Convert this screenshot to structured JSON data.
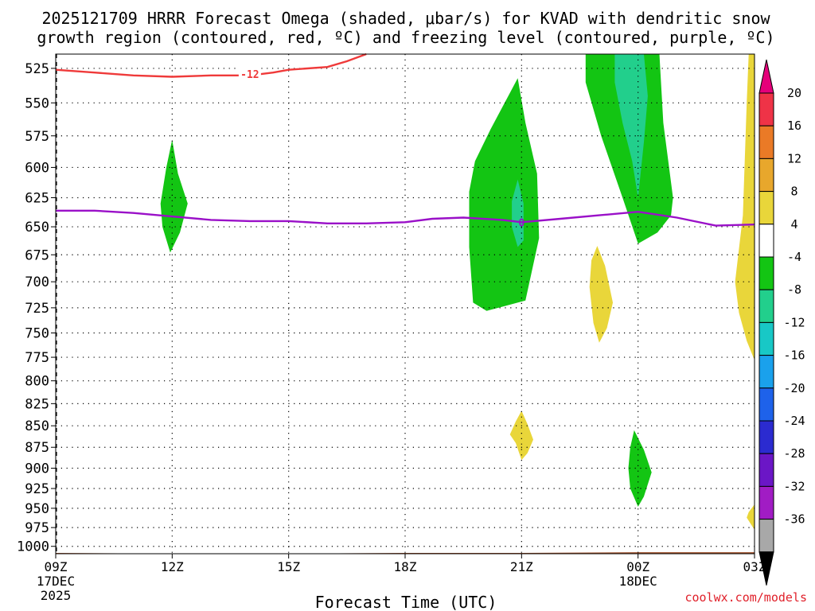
{
  "chart_data": {
    "type": "time-height contour",
    "title_line1": "2025121709 HRRR Forecast Omega (shaded, μbar/s) for KVAD with dendritic snow",
    "title_line2": "growth region (contoured, red, ºC) and freezing level (contoured, purple, ºC)",
    "xlabel": "Forecast Time (UTC)",
    "credit": "coolwx.com/models",
    "x_range_hours": [
      0,
      18
    ],
    "y_range_hpa": [
      1010,
      515
    ],
    "y_ticks": [
      "525",
      "550",
      "575",
      "600",
      "625",
      "650",
      "675",
      "700",
      "725",
      "750",
      "775",
      "800",
      "825",
      "850",
      "875",
      "900",
      "925",
      "950",
      "975",
      "1000"
    ],
    "x_ticks": [
      {
        "h": 0,
        "label": "09Z",
        "sub1": "17DEC",
        "sub2": "2025"
      },
      {
        "h": 3,
        "label": "12Z",
        "sub1": "",
        "sub2": ""
      },
      {
        "h": 6,
        "label": "15Z",
        "sub1": "",
        "sub2": ""
      },
      {
        "h": 9,
        "label": "18Z",
        "sub1": "",
        "sub2": ""
      },
      {
        "h": 12,
        "label": "21Z",
        "sub1": "",
        "sub2": ""
      },
      {
        "h": 15,
        "label": "00Z",
        "sub1": "18DEC",
        "sub2": ""
      },
      {
        "h": 18,
        "label": "03Z",
        "sub1": "",
        "sub2": ""
      }
    ],
    "colorbar": {
      "labels": [
        "20",
        "16",
        "12",
        "8",
        "4",
        "-4",
        "-8",
        "-12",
        "-16",
        "-20",
        "-24",
        "-28",
        "-32",
        "-36"
      ],
      "colors": [
        "#ef3347",
        "#ea7a26",
        "#e8a72c",
        "#e9d63a",
        "#ffffff",
        "#13c513",
        "#22cf8c",
        "#18c8c6",
        "#1aa1ec",
        "#1e62ea",
        "#2b2bd0",
        "#6b16c6",
        "#a11cc4",
        "#a8a8a8"
      ],
      "top_triangle": "#e5007a",
      "bottom_triangle": "#000000"
    },
    "omega_areas": [
      {
        "name": "green-cell-12z",
        "color": "#13c513",
        "points": [
          [
            3.0,
            578
          ],
          [
            3.15,
            605
          ],
          [
            3.4,
            630
          ],
          [
            3.2,
            655
          ],
          [
            2.95,
            673
          ],
          [
            2.75,
            650
          ],
          [
            2.7,
            630
          ],
          [
            2.85,
            600
          ]
        ]
      },
      {
        "name": "green-cell-21z",
        "color": "#13c513",
        "points": [
          [
            11.9,
            532
          ],
          [
            12.1,
            565
          ],
          [
            12.4,
            605
          ],
          [
            12.45,
            660
          ],
          [
            12.1,
            718
          ],
          [
            11.1,
            728
          ],
          [
            10.75,
            720
          ],
          [
            10.65,
            668
          ],
          [
            10.65,
            620
          ],
          [
            10.8,
            595
          ],
          [
            11.2,
            570
          ]
        ]
      },
      {
        "name": "teal-core-21z",
        "color": "#22cf8c",
        "points": [
          [
            11.9,
            610
          ],
          [
            12.05,
            630
          ],
          [
            12.05,
            662
          ],
          [
            11.9,
            668
          ],
          [
            11.75,
            650
          ],
          [
            11.75,
            628
          ]
        ]
      },
      {
        "name": "green-cell-00z-upper",
        "color": "#13c513",
        "points": [
          [
            13.65,
            515
          ],
          [
            15.55,
            515
          ],
          [
            15.65,
            565
          ],
          [
            15.9,
            625
          ],
          [
            15.85,
            640
          ],
          [
            15.5,
            655
          ],
          [
            15.0,
            665
          ],
          [
            14.6,
            625
          ],
          [
            14.05,
            575
          ],
          [
            13.65,
            535
          ]
        ]
      },
      {
        "name": "teal-core-00z",
        "color": "#22cf8c",
        "points": [
          [
            14.4,
            515
          ],
          [
            15.15,
            515
          ],
          [
            15.25,
            545
          ],
          [
            15.15,
            580
          ],
          [
            15.0,
            625
          ],
          [
            14.85,
            595
          ],
          [
            14.6,
            565
          ],
          [
            14.4,
            535
          ]
        ]
      },
      {
        "name": "yellow-cell-2230z",
        "color": "#e9d63a",
        "points": [
          [
            13.95,
            667
          ],
          [
            14.15,
            685
          ],
          [
            14.35,
            720
          ],
          [
            14.2,
            745
          ],
          [
            14.0,
            760
          ],
          [
            13.85,
            740
          ],
          [
            13.75,
            705
          ],
          [
            13.8,
            680
          ]
        ]
      },
      {
        "name": "yellow-cell-21z-low",
        "color": "#e9d63a",
        "points": [
          [
            12.0,
            833
          ],
          [
            12.15,
            848
          ],
          [
            12.3,
            866
          ],
          [
            12.15,
            882
          ],
          [
            12.0,
            890
          ],
          [
            11.85,
            870
          ],
          [
            11.7,
            860
          ],
          [
            11.85,
            845
          ]
        ]
      },
      {
        "name": "green-cell-00z-low",
        "color": "#13c513",
        "points": [
          [
            14.9,
            855
          ],
          [
            15.15,
            878
          ],
          [
            15.35,
            905
          ],
          [
            15.15,
            935
          ],
          [
            15.0,
            948
          ],
          [
            14.8,
            925
          ],
          [
            14.75,
            900
          ],
          [
            14.8,
            875
          ]
        ]
      },
      {
        "name": "yellow-strip-03z",
        "color": "#e9d63a",
        "points": [
          [
            17.8,
            550
          ],
          [
            17.85,
            515
          ],
          [
            18.0,
            515
          ],
          [
            18.0,
            778
          ],
          [
            17.8,
            758
          ],
          [
            17.6,
            730
          ],
          [
            17.5,
            700
          ],
          [
            17.7,
            640
          ]
        ]
      },
      {
        "name": "yellow-blob-0245z",
        "color": "#e9d63a",
        "points": [
          [
            17.85,
            955
          ],
          [
            18.0,
            945
          ],
          [
            18.0,
            978
          ],
          [
            17.8,
            962
          ]
        ]
      }
    ],
    "dgz_contour": {
      "label": "-12",
      "label_h": 5.0,
      "label_p": 529,
      "points": [
        [
          0,
          526
        ],
        [
          1,
          528
        ],
        [
          2,
          530
        ],
        [
          3,
          531
        ],
        [
          4,
          530
        ],
        [
          5,
          530
        ],
        [
          5.6,
          528
        ],
        [
          6,
          526
        ],
        [
          7,
          524
        ],
        [
          7.5,
          520
        ],
        [
          8.0,
          515
        ]
      ]
    },
    "freezing_level": {
      "label": "0",
      "label_h": 12.0,
      "label_p": 646,
      "points": [
        [
          0,
          636
        ],
        [
          1,
          636
        ],
        [
          2,
          638
        ],
        [
          3,
          641
        ],
        [
          4,
          644
        ],
        [
          5,
          645
        ],
        [
          6,
          645
        ],
        [
          7,
          647
        ],
        [
          8,
          647
        ],
        [
          9,
          646
        ],
        [
          9.7,
          643
        ],
        [
          10.5,
          642
        ],
        [
          11.5,
          644
        ],
        [
          12.0,
          646
        ],
        [
          13,
          643
        ],
        [
          14,
          640
        ],
        [
          15,
          637
        ],
        [
          16,
          642
        ],
        [
          17,
          649
        ],
        [
          18,
          648
        ]
      ]
    },
    "terrain": {
      "color": "#a0522d",
      "top_points": [
        [
          0,
          1010
        ],
        [
          3,
          1011
        ],
        [
          6,
          1011
        ],
        [
          9,
          1010
        ],
        [
          12,
          1010
        ],
        [
          15,
          1009
        ],
        [
          18,
          1009
        ]
      ]
    }
  }
}
